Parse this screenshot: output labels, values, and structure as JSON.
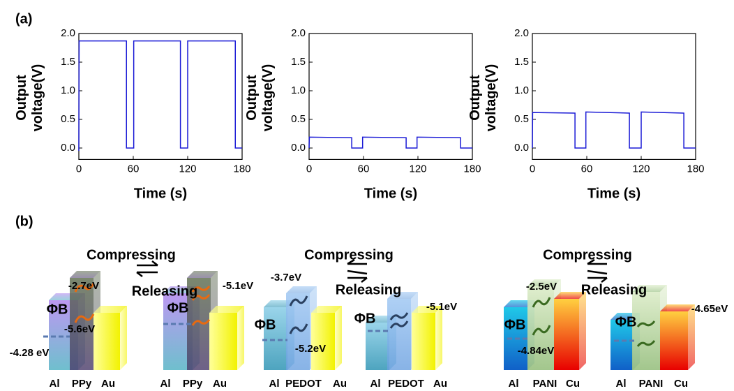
{
  "chart_data": [
    {
      "type": "line",
      "xlabel": "Time (s)",
      "ylabel": "Output voltage(V)",
      "color": "#1a1ad6",
      "x": [
        0,
        0.3,
        52.5,
        52.5,
        60.5,
        60.5,
        112,
        112,
        120,
        120,
        172.5,
        172.5,
        180
      ],
      "values": [
        -0.05,
        1.87,
        1.87,
        0,
        0,
        1.87,
        1.87,
        0,
        0,
        1.87,
        1.87,
        0,
        0
      ],
      "xlim": [
        0,
        180
      ],
      "xticks": [
        0,
        60,
        120,
        180
      ],
      "ylim": [
        -0.2,
        2.0
      ],
      "yticks": [
        {
          "value": 0,
          "label": "0.0"
        },
        0.5,
        {
          "value": 1,
          "label": "1.0"
        },
        1.5,
        {
          "value": 2,
          "label": "2.0"
        }
      ]
    },
    {
      "type": "line",
      "xlabel": "Time (s)",
      "ylabel": "Output voltage(V)",
      "color": "#1a1ad6",
      "x": [
        0,
        0.3,
        47,
        47,
        59,
        59,
        107,
        107,
        119,
        119,
        167,
        167,
        180
      ],
      "values": [
        0,
        0.19,
        0.18,
        0,
        0,
        0.19,
        0.18,
        0,
        0,
        0.19,
        0.18,
        0,
        0
      ],
      "xlim": [
        0,
        180
      ],
      "xticks": [
        0,
        60,
        120,
        180
      ],
      "ylim": [
        -0.2,
        2.0
      ],
      "yticks": [
        {
          "value": 0,
          "label": "0.0"
        },
        0.5,
        {
          "value": 1,
          "label": "1.0"
        },
        1.5,
        {
          "value": 2,
          "label": "2.0"
        }
      ]
    },
    {
      "type": "line",
      "xlabel": "Time (s)",
      "ylabel": "Output voltage(V)",
      "color": "#1a1ad6",
      "x": [
        0,
        0.3,
        47,
        47,
        59,
        59,
        107,
        107,
        120,
        120,
        167,
        167,
        180
      ],
      "values": [
        0,
        0.62,
        0.61,
        0,
        0,
        0.63,
        0.61,
        0,
        0,
        0.63,
        0.61,
        0,
        0
      ],
      "xlim": [
        0,
        180
      ],
      "xticks": [
        0,
        60,
        120,
        180
      ],
      "ylim": [
        -0.2,
        2.0
      ],
      "yticks": [
        {
          "value": 0,
          "label": "0.0"
        },
        0.5,
        {
          "value": 1,
          "label": "1.0"
        },
        1.5,
        {
          "value": 2,
          "label": "2.0"
        }
      ]
    }
  ],
  "panel_labels": [
    "(a)",
    "(b)"
  ],
  "diagram": {
    "texts": [
      "Compressing",
      "Releasing",
      "-2.7eV",
      "ΦB",
      "-5.6eV",
      "-4.28 eV",
      "ΦB",
      "-5.1eV",
      "Al",
      "PPy",
      "Au",
      "Al",
      "PPy",
      "Au",
      "Compressing",
      "Releasing",
      "-3.7eV",
      "ΦB",
      "-5.2eV",
      "ΦB",
      "-5.1eV",
      "Al",
      "PEDOT",
      "Au",
      "Al",
      "PEDOT",
      "Au",
      "Compressing",
      "Releasing",
      "-2.5eV",
      "ΦB",
      "-4.84eV",
      "ΦB",
      "-4.65eV",
      "Al",
      "PANI",
      "Cu",
      "Al",
      "PANI",
      "Cu"
    ]
  }
}
